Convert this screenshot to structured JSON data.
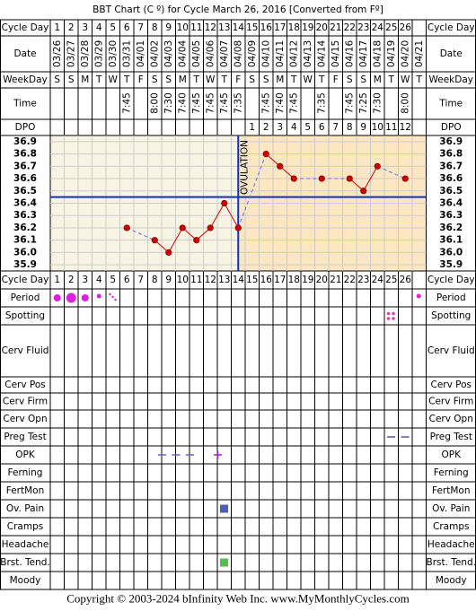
{
  "title": "BBT Chart (C º) for Cycle March 26, 2016  [Converted from Fº]",
  "labels": {
    "cycle_day": "Cycle Day",
    "date": "Date",
    "weekday": "WeekDay",
    "time": "Time",
    "dpo": "DPO"
  },
  "cycle_days": [
    1,
    2,
    3,
    4,
    5,
    6,
    7,
    8,
    9,
    10,
    11,
    12,
    13,
    14,
    15,
    16,
    17,
    18,
    19,
    20,
    21,
    22,
    23,
    24,
    25,
    26,
    null
  ],
  "weekdays": [
    "S",
    "S",
    "M",
    "T",
    "W",
    "T",
    "F",
    "S",
    "S",
    "M",
    "T",
    "W",
    "T",
    "F",
    "S",
    "S",
    "M",
    "T",
    "W",
    "T",
    "F",
    "S",
    "S",
    "M",
    "T",
    "W",
    "T"
  ],
  "times": [
    null,
    null,
    null,
    null,
    null,
    "7:45",
    null,
    "8:00",
    "7:30",
    "7:40",
    "7:45",
    "7:45",
    "7:45",
    "7:35",
    null,
    "7:45",
    "7:40",
    "7:45",
    null,
    "7:35",
    null,
    "7:45",
    "7:25",
    "7:30",
    null,
    "8:00",
    null
  ],
  "dpo": [
    null,
    null,
    null,
    null,
    null,
    null,
    null,
    null,
    null,
    null,
    null,
    null,
    null,
    null,
    1,
    2,
    3,
    4,
    5,
    6,
    7,
    8,
    9,
    10,
    11,
    12,
    null
  ],
  "lower_rows": [
    "Period",
    "Spotting",
    "Cerv Fluid",
    "Cerv Pos",
    "Cerv Firm",
    "Cerv Opn",
    "Preg Test",
    "OPK",
    "Ferning",
    "FertMon",
    "Ov. Pain",
    "Cramps",
    "Headache",
    "Brst. Tend.",
    "Moody"
  ],
  "chart_data": {
    "type": "line",
    "categories": [
      "03/26",
      "03/27",
      "03/28",
      "03/29",
      "03/30",
      "03/31",
      "04/01",
      "04/02",
      "04/03",
      "04/04",
      "04/05",
      "04/06",
      "04/07",
      "04/08",
      "04/09",
      "04/10",
      "04/11",
      "04/12",
      "04/13",
      "04/14",
      "04/15",
      "04/16",
      "04/17",
      "04/18",
      "04/19",
      "04/20",
      "04/21"
    ],
    "values": [
      null,
      null,
      null,
      null,
      null,
      36.2,
      null,
      36.1,
      36.0,
      36.2,
      36.1,
      36.2,
      36.4,
      36.2,
      null,
      36.8,
      36.7,
      36.6,
      null,
      36.6,
      null,
      36.6,
      36.5,
      36.7,
      null,
      36.6,
      null
    ],
    "color": "#cc0000",
    "ylim": [
      35.85,
      36.95
    ],
    "yticks": [
      36.9,
      36.8,
      36.7,
      36.6,
      36.5,
      36.4,
      36.3,
      36.2,
      36.1,
      {
        "value": 36.0,
        "label": "36.0"
      },
      35.9
    ],
    "grid": true,
    "coverline": 36.45,
    "ovulation": {
      "label": "OVULATION",
      "day": 14
    }
  },
  "footer": "Copyright © 2003-2024 bInfinity Web Inc.    www.MyMonthlyCycles.com"
}
